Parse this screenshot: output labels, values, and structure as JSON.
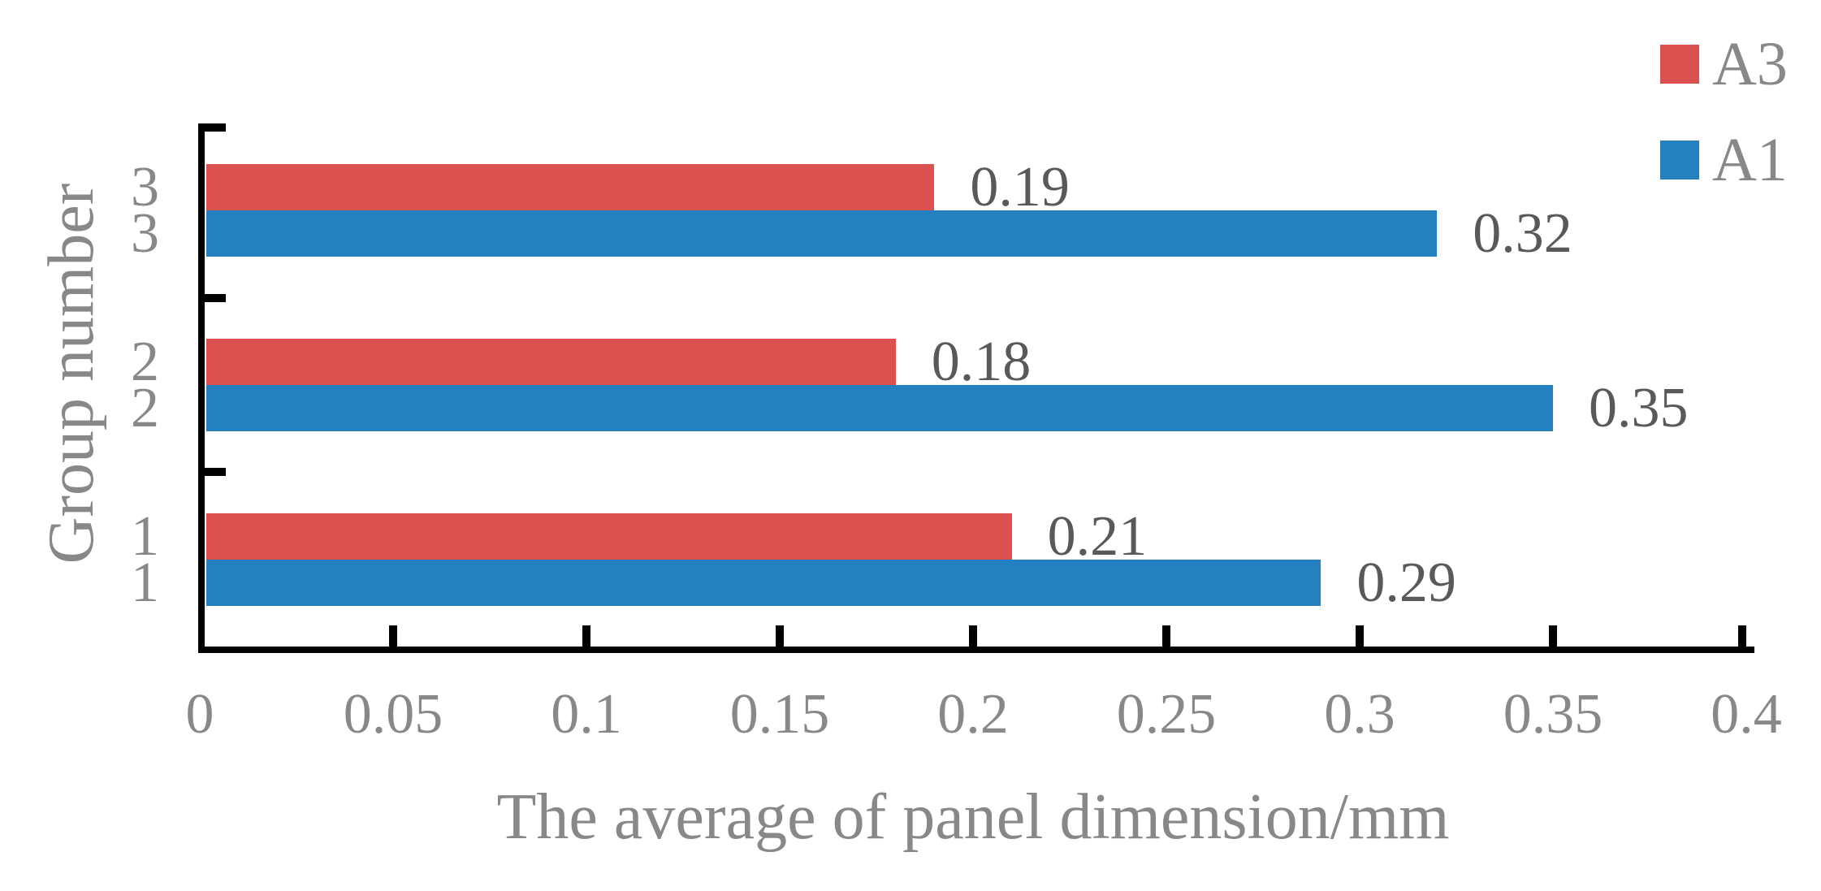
{
  "colors": {
    "series_a3": "#DB5150",
    "series_a1": "#2480C1",
    "axis_line": "#000000",
    "axis_text": "#888888",
    "value_label_text": "#595959",
    "background": "#FFFFFF"
  },
  "chart_data": {
    "type": "bar",
    "orientation": "horizontal",
    "title": "",
    "xlabel": "The average of panel dimension/mm",
    "ylabel": "Group number",
    "categories": [
      "3",
      "2",
      "1"
    ],
    "series": [
      {
        "name": "A3",
        "color": "#DB5150",
        "values": [
          0.19,
          0.18,
          0.21
        ]
      },
      {
        "name": "A1",
        "color": "#2480C1",
        "values": [
          0.32,
          0.35,
          0.29
        ]
      }
    ],
    "value_labels": [
      "0.19",
      "0.32",
      "0.18",
      "0.35",
      "0.21",
      "0.29"
    ],
    "xlim": [
      0,
      0.4
    ],
    "xticks": [
      0,
      0.05,
      0.1,
      0.15,
      0.2,
      0.25,
      0.3,
      0.35,
      0.4
    ],
    "xtick_labels": [
      "0",
      "0.05",
      "0.1",
      "0.15",
      "0.2",
      "0.25",
      "0.3",
      "0.35",
      "0.4"
    ],
    "grid": false,
    "legend_position": "top-right",
    "legend_entries": [
      "A3",
      "A1"
    ]
  }
}
